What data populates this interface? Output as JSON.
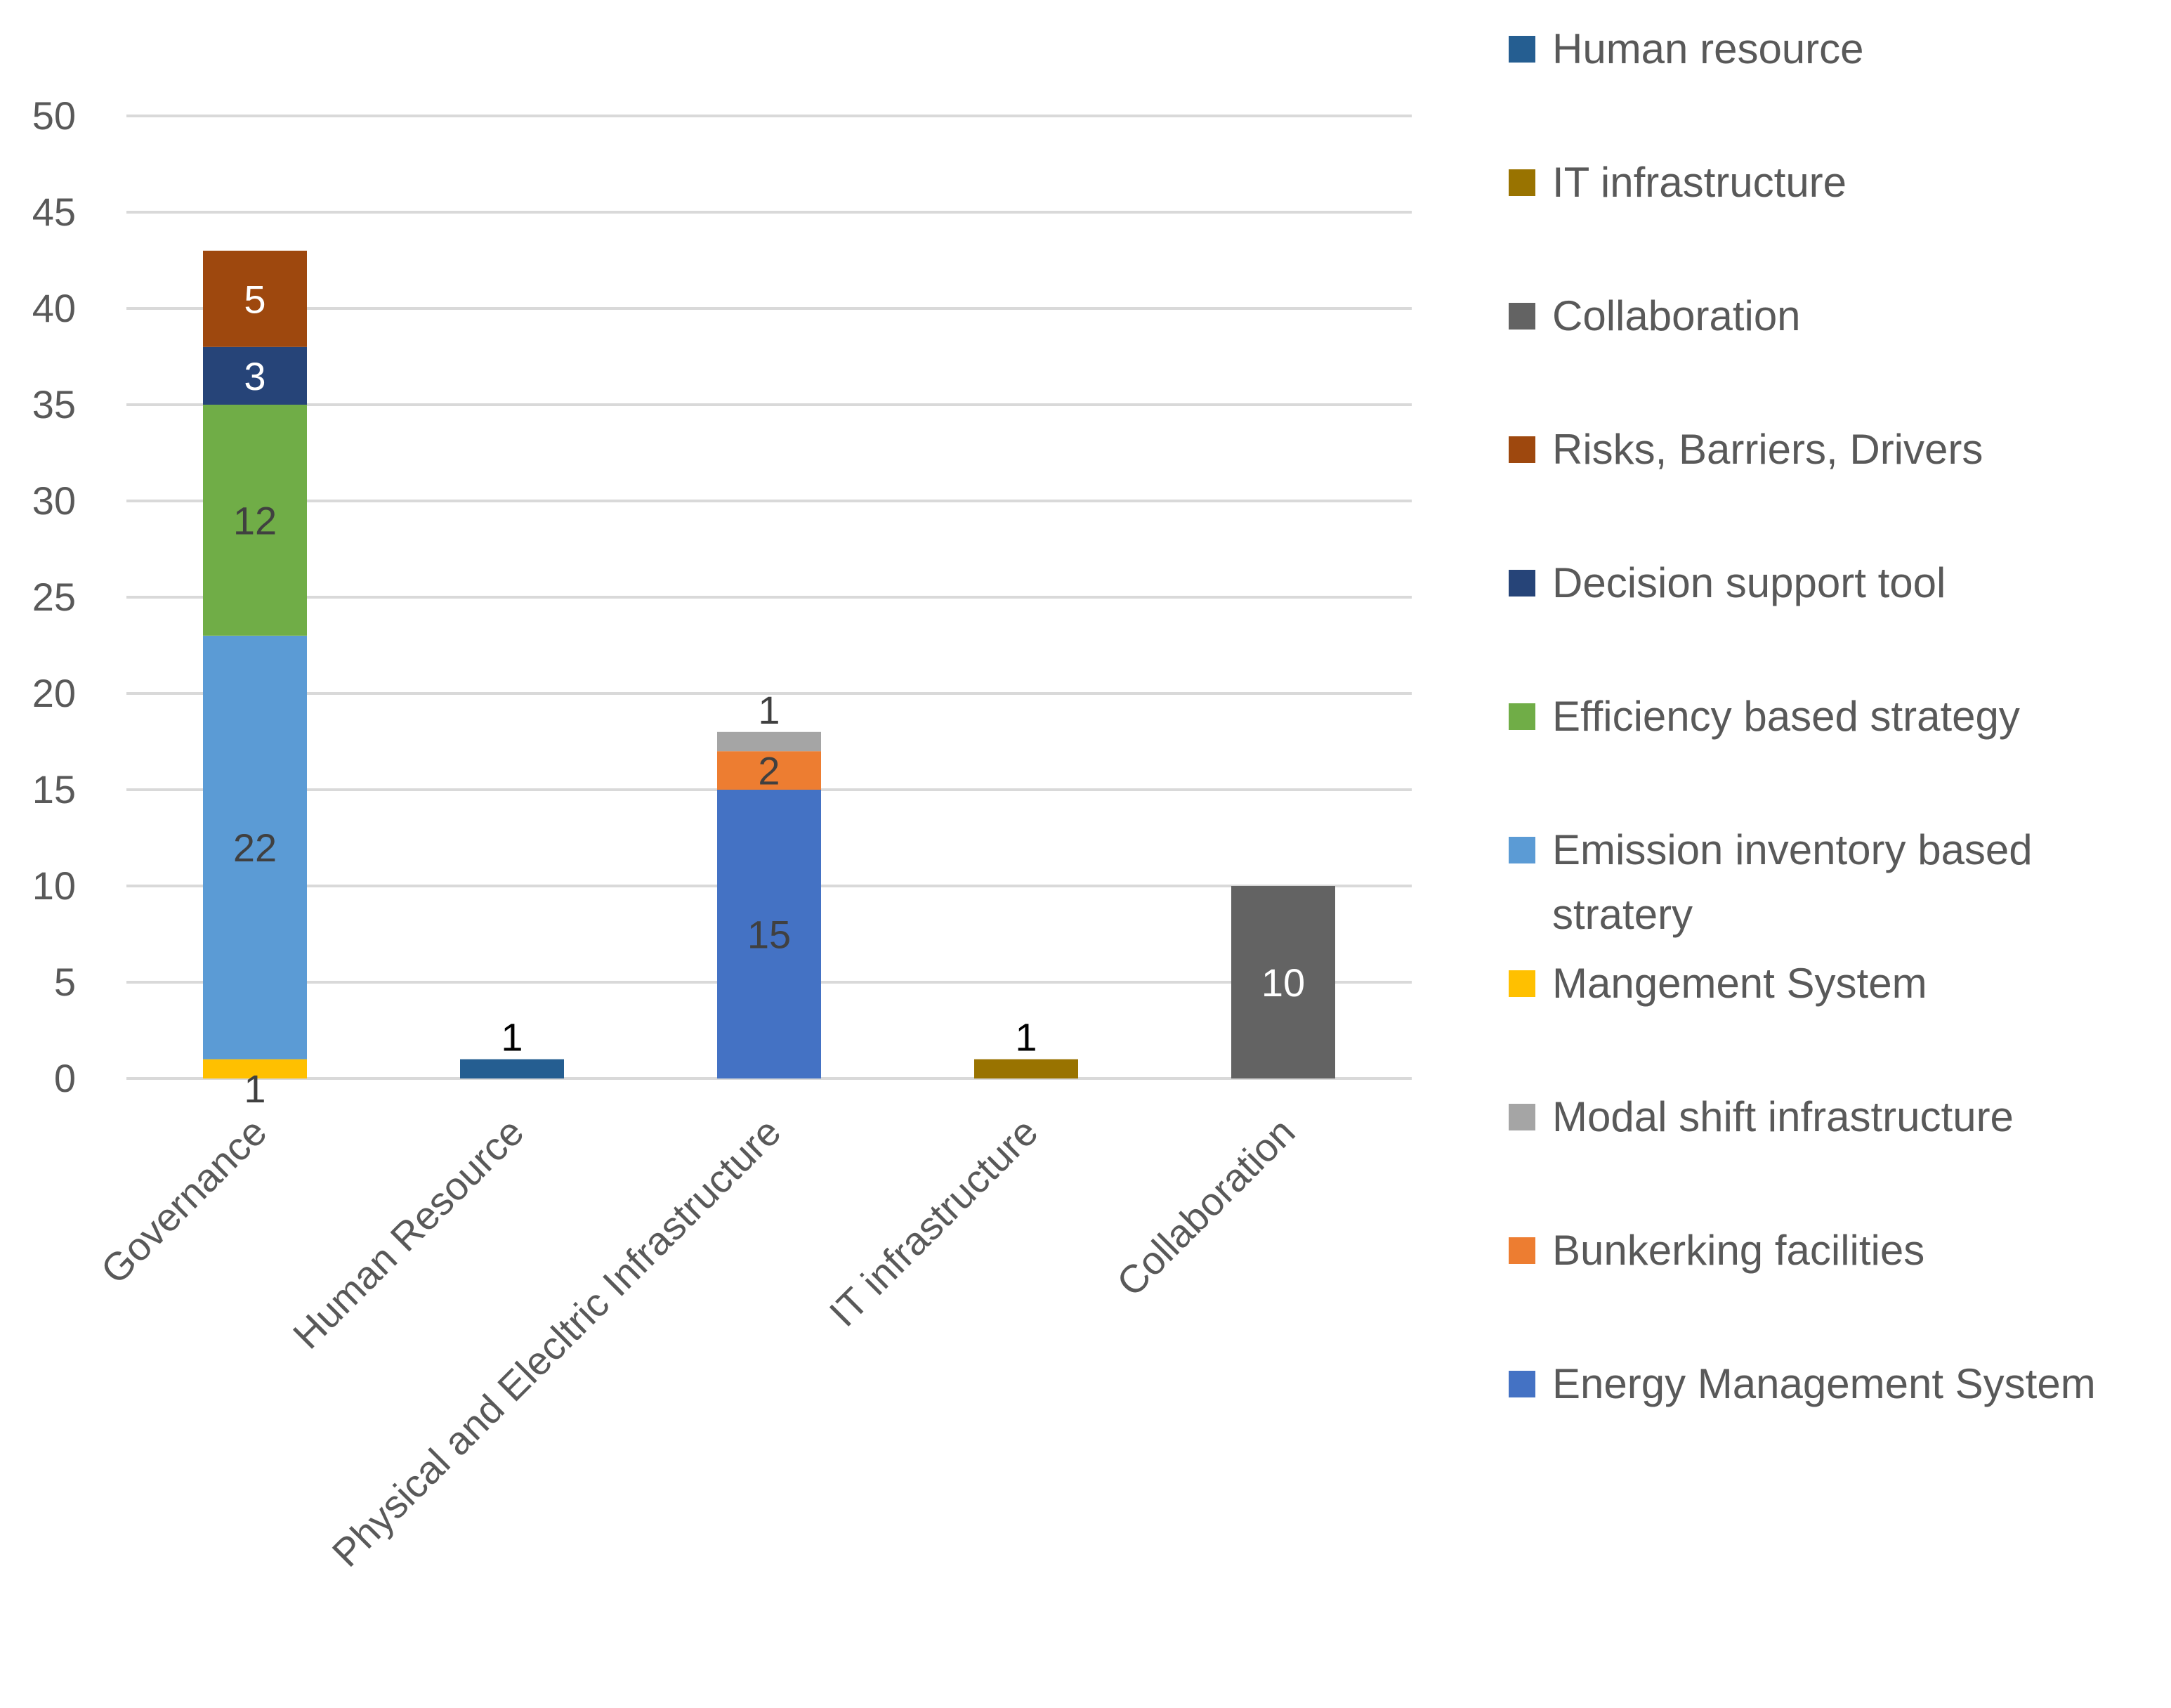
{
  "chart_data": {
    "type": "bar",
    "stacked": true,
    "title": "",
    "xlabel": "",
    "ylabel": "",
    "ylim": [
      0,
      50
    ],
    "yticks": [
      0,
      5,
      10,
      15,
      20,
      25,
      30,
      35,
      40,
      45,
      50
    ],
    "grid": true,
    "legend_position": "right",
    "categories": [
      "Governance",
      "Human Resource",
      "Physical and Elecltric Infrastructure",
      "IT infrastructure",
      "Collaboration"
    ],
    "series": [
      {
        "name": "Mangement System",
        "color": "#FFC000",
        "values": [
          1,
          0,
          0,
          0,
          0
        ],
        "label_color": "#404040"
      },
      {
        "name": "Emission inventory based stratery",
        "color": "#5B9BD5",
        "values": [
          22,
          0,
          0,
          0,
          0
        ],
        "label_color": "#404040"
      },
      {
        "name": "Efficiency based strategy",
        "color": "#70AD47",
        "values": [
          12,
          0,
          0,
          0,
          0
        ],
        "label_color": "#404040"
      },
      {
        "name": "Decision support tool",
        "color": "#264478",
        "values": [
          3,
          0,
          0,
          0,
          0
        ],
        "label_color": "#FFFFFF"
      },
      {
        "name": "Risks, Barriers, Drivers",
        "color": "#9E480E",
        "values": [
          5,
          0,
          0,
          0,
          0
        ],
        "label_color": "#FFFFFF"
      },
      {
        "name": "Human resource",
        "color": "#255E91",
        "values": [
          0,
          1,
          0,
          0,
          0
        ],
        "label_color": "#000000"
      },
      {
        "name": "Energy Management System",
        "color": "#4472C4",
        "values": [
          0,
          0,
          15,
          0,
          0
        ],
        "label_color": "#404040"
      },
      {
        "name": "Bunkerking facilities",
        "color": "#ED7D31",
        "values": [
          0,
          0,
          2,
          0,
          0
        ],
        "label_color": "#404040"
      },
      {
        "name": "Modal shift infrastructure",
        "color": "#A5A5A5",
        "values": [
          0,
          0,
          1,
          0,
          0
        ],
        "label_color": "#404040"
      },
      {
        "name": "IT infrastructure",
        "color": "#997300",
        "values": [
          0,
          0,
          0,
          1,
          0
        ],
        "label_color": "#000000"
      },
      {
        "name": "Collaboration",
        "color": "#636363",
        "values": [
          0,
          0,
          0,
          0,
          10
        ],
        "label_color": "#FFFFFF"
      }
    ],
    "legend_order": [
      "Human resource",
      "IT infrastructure",
      "Collaboration",
      "Risks, Barriers, Drivers",
      "Decision support tool",
      "Efficiency based strategy",
      "Emission inventory based stratery",
      "Mangement System",
      "Modal shift infrastructure",
      "Bunkerking facilities",
      "Energy Management System"
    ]
  }
}
